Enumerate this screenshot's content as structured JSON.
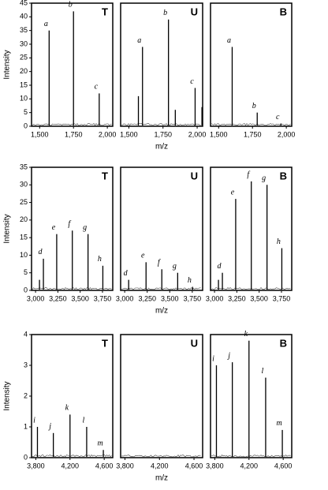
{
  "chart_data": [
    {
      "type": "spectrum",
      "title": "T",
      "ylabel": "Intensity",
      "xlim": [
        1440,
        2040
      ],
      "xticks": [
        {
          "value": 1500,
          "label": "1,500"
        },
        {
          "value": 1750,
          "label": "1,750"
        },
        {
          "value": 2000,
          "label": "2,000"
        }
      ],
      "ylim": [
        0,
        45
      ],
      "yticks": [
        0,
        5,
        10,
        15,
        20,
        25,
        30,
        35,
        40,
        45
      ],
      "x": [
        1570,
        1750,
        1940
      ],
      "values": [
        35,
        42,
        12
      ],
      "labels": [
        "a",
        "b",
        "c"
      ]
    },
    {
      "type": "spectrum",
      "title": "U",
      "xlabel": "m/z",
      "xlim": [
        1440,
        2040
      ],
      "xticks": [
        {
          "value": 1500,
          "label": "1,500"
        },
        {
          "value": 1750,
          "label": "1,750"
        },
        {
          "value": 2000,
          "label": "2,000"
        }
      ],
      "ylim": [
        0,
        45
      ],
      "x": [
        1570,
        1600,
        1790,
        1840,
        1985,
        2035
      ],
      "values": [
        11,
        29,
        39,
        6,
        14,
        7
      ],
      "labels": [
        null,
        "a",
        "b",
        null,
        "c",
        null
      ]
    },
    {
      "type": "spectrum",
      "title": "B",
      "xlim": [
        1440,
        2040
      ],
      "xticks": [
        {
          "value": 1500,
          "label": "1,500"
        },
        {
          "value": 1750,
          "label": "1,750"
        },
        {
          "value": 2000,
          "label": "2,000"
        }
      ],
      "ylim": [
        0,
        45
      ],
      "x": [
        1600,
        1785,
        1960
      ],
      "values": [
        29,
        5,
        1
      ],
      "labels": [
        "a",
        "b",
        "c"
      ]
    },
    {
      "type": "spectrum",
      "title": "T",
      "ylabel": "Intensity",
      "xlim": [
        2955,
        3865
      ],
      "xticks": [
        {
          "value": 3000,
          "label": "3,000"
        },
        {
          "value": 3250,
          "label": "3,250"
        },
        {
          "value": 3500,
          "label": "3,500"
        },
        {
          "value": 3750,
          "label": "3,750"
        }
      ],
      "ylim": [
        0,
        35
      ],
      "yticks": [
        0,
        5,
        10,
        15,
        20,
        25,
        30,
        35
      ],
      "x": [
        3044,
        3088,
        3237,
        3412,
        3588,
        3754
      ],
      "values": [
        3,
        9,
        16,
        17,
        16,
        7
      ],
      "labels": [
        null,
        "d",
        "e",
        "f",
        "g",
        "h"
      ]
    },
    {
      "type": "spectrum",
      "title": "U",
      "xlabel": "m/z",
      "xlim": [
        2955,
        3865
      ],
      "xticks": [
        {
          "value": 3000,
          "label": "3,000"
        },
        {
          "value": 3250,
          "label": "3,250"
        },
        {
          "value": 3500,
          "label": "3,500"
        },
        {
          "value": 3750,
          "label": "3,750"
        }
      ],
      "ylim": [
        0,
        35
      ],
      "x": [
        3044,
        3237,
        3412,
        3588,
        3754
      ],
      "values": [
        3,
        8,
        6,
        5,
        1
      ],
      "labels": [
        "d",
        "e",
        "f",
        "g",
        "h"
      ]
    },
    {
      "type": "spectrum",
      "title": "B",
      "xlim": [
        2955,
        3865
      ],
      "xticks": [
        {
          "value": 3000,
          "label": "3,000"
        },
        {
          "value": 3250,
          "label": "3,250"
        },
        {
          "value": 3500,
          "label": "3,500"
        },
        {
          "value": 3750,
          "label": "3,750"
        }
      ],
      "ylim": [
        0,
        35
      ],
      "x": [
        3044,
        3088,
        3237,
        3412,
        3588,
        3754
      ],
      "values": [
        3,
        5,
        26,
        31,
        30,
        12
      ],
      "labels": [
        null,
        "d",
        "e",
        "f",
        "g",
        "h"
      ]
    },
    {
      "type": "spectrum",
      "title": "T",
      "ylabel": "Intensity",
      "xlim": [
        3750,
        4700
      ],
      "xticks": [
        {
          "value": 3800,
          "label": "3,800"
        },
        {
          "value": 4200,
          "label": "4,200"
        },
        {
          "value": 4600,
          "label": "4,600"
        }
      ],
      "ylim": [
        0,
        4
      ],
      "yticks": [
        0,
        1,
        2,
        3,
        4
      ],
      "x": [
        3819,
        4005,
        4200,
        4395,
        4590
      ],
      "values": [
        1.0,
        0.8,
        1.4,
        1.0,
        0.25
      ],
      "labels": [
        "i",
        "j",
        "k",
        "l",
        "m"
      ]
    },
    {
      "type": "spectrum",
      "title": "U",
      "xlabel": "m/z",
      "xlim": [
        3750,
        4700
      ],
      "xticks": [
        {
          "value": 3800,
          "label": "3,800"
        },
        {
          "value": 4200,
          "label": "4,200"
        },
        {
          "value": 4600,
          "label": "4,600"
        }
      ],
      "ylim": [
        0,
        4
      ],
      "x": [],
      "values": [],
      "labels": []
    },
    {
      "type": "spectrum",
      "title": "B",
      "xlim": [
        3750,
        4700
      ],
      "xticks": [
        {
          "value": 3800,
          "label": "3,800"
        },
        {
          "value": 4200,
          "label": "4,200"
        },
        {
          "value": 4600,
          "label": "4,600"
        }
      ],
      "ylim": [
        0,
        4
      ],
      "x": [
        3819,
        4005,
        4200,
        4395,
        4590
      ],
      "values": [
        3.0,
        3.1,
        3.8,
        2.6,
        0.9
      ],
      "labels": [
        "i",
        "j",
        "k",
        "l",
        "m"
      ]
    }
  ]
}
